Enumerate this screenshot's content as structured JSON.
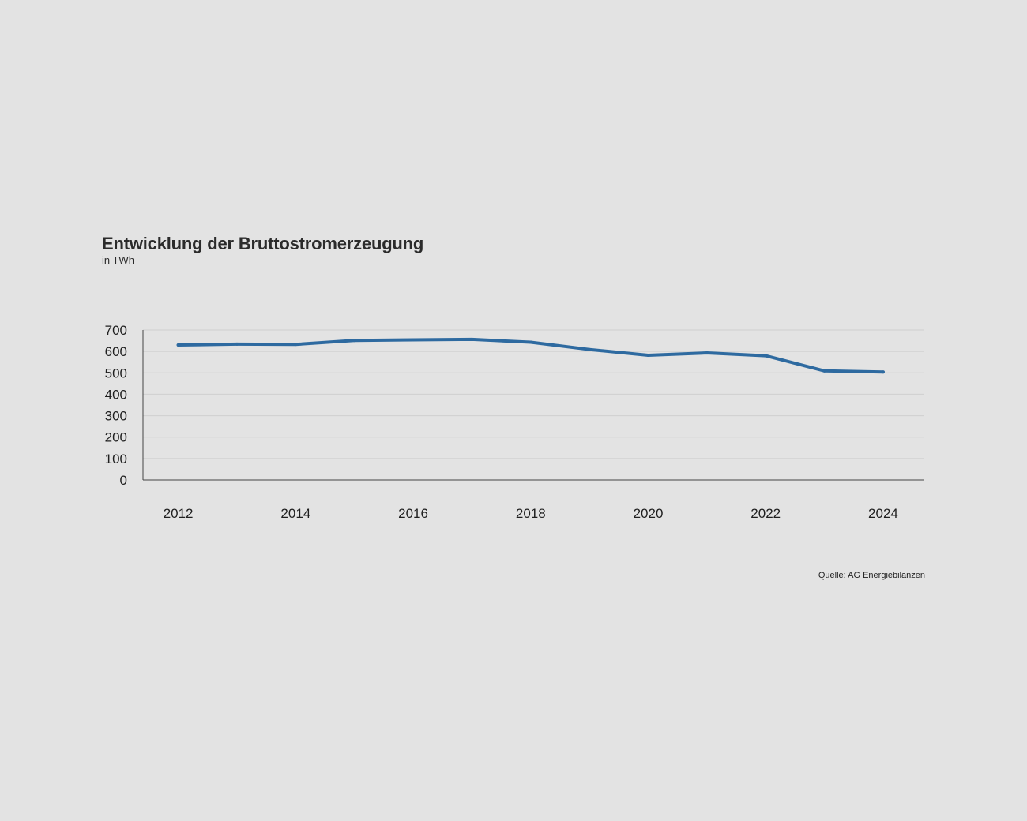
{
  "chart_data": {
    "type": "line",
    "title": "Entwicklung der Bruttostromerzeugung",
    "subtitle": "in TWh",
    "x": [
      2012,
      2013,
      2014,
      2015,
      2016,
      2017,
      2018,
      2019,
      2020,
      2021,
      2022,
      2023,
      2024
    ],
    "x_tick_labels": [
      "2012",
      "2014",
      "2016",
      "2018",
      "2020",
      "2022",
      "2024"
    ],
    "x_tick_values": [
      2012,
      2014,
      2016,
      2018,
      2020,
      2022,
      2024
    ],
    "y_tick_labels": [
      "0",
      "100",
      "200",
      "300",
      "400",
      "500",
      "600",
      "700"
    ],
    "y_tick_values": [
      0,
      100,
      200,
      300,
      400,
      500,
      600,
      700
    ],
    "ylim": [
      0,
      700
    ],
    "xlim": [
      2011.4,
      2024.7
    ],
    "grid": true,
    "series": [
      {
        "values": [
          630,
          634,
          633,
          651,
          654,
          656,
          643,
          609,
          582,
          593,
          580,
          509,
          504
        ]
      }
    ],
    "line_color": "#2e6aa0",
    "source": "Quelle: AG Energiebilanzen"
  }
}
